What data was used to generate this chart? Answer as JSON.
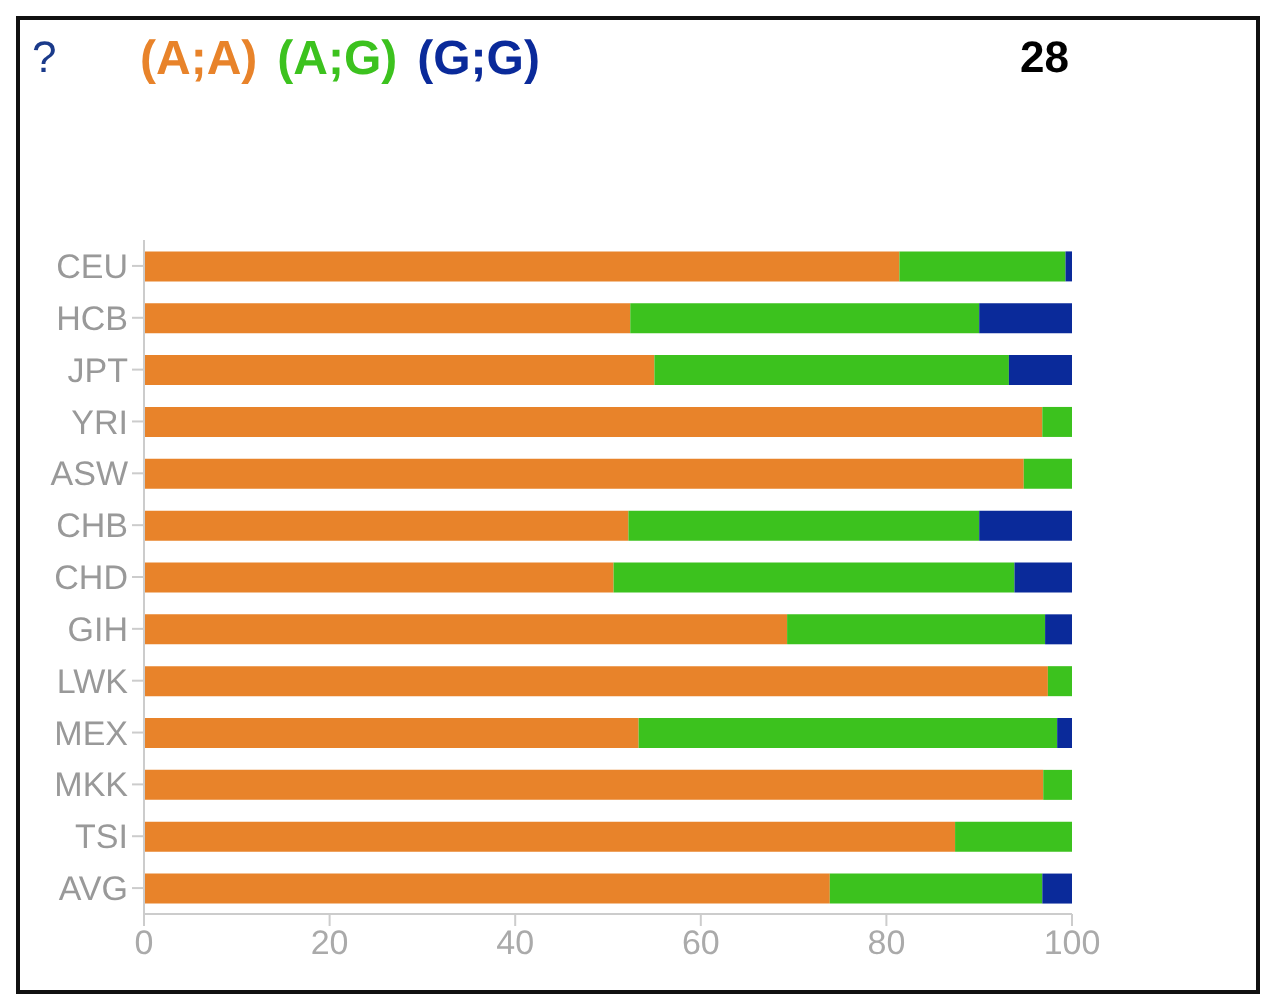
{
  "chart_data": {
    "type": "bar",
    "orientation": "horizontal",
    "stacked": true,
    "categories": [
      "CEU",
      "HCB",
      "JPT",
      "YRI",
      "ASW",
      "CHB",
      "CHD",
      "GIH",
      "LWK",
      "MEX",
      "MKK",
      "TSI",
      "AVG"
    ],
    "series": [
      {
        "name": "(A;A)",
        "color": "#e8832a",
        "values": [
          81.4,
          52.4,
          55.0,
          96.8,
          94.8,
          52.2,
          50.6,
          69.3,
          97.4,
          53.3,
          96.9,
          87.4,
          73.9
        ]
      },
      {
        "name": "(A;G)",
        "color": "#3cc21e",
        "values": [
          17.9,
          37.6,
          38.2,
          3.2,
          5.2,
          37.8,
          43.2,
          27.8,
          2.6,
          45.1,
          3.1,
          12.6,
          22.9
        ]
      },
      {
        "name": "(G;G)",
        "color": "#0a2a9a",
        "values": [
          0.7,
          10.0,
          6.8,
          0,
          0,
          10.0,
          6.2,
          2.9,
          0,
          1.6,
          0,
          0,
          3.2
        ]
      }
    ],
    "xlim": [
      0,
      100
    ],
    "xticks": [
      0,
      20,
      40,
      60,
      80,
      100
    ],
    "legend": "top left",
    "annotations": [
      "?",
      "28"
    ]
  }
}
